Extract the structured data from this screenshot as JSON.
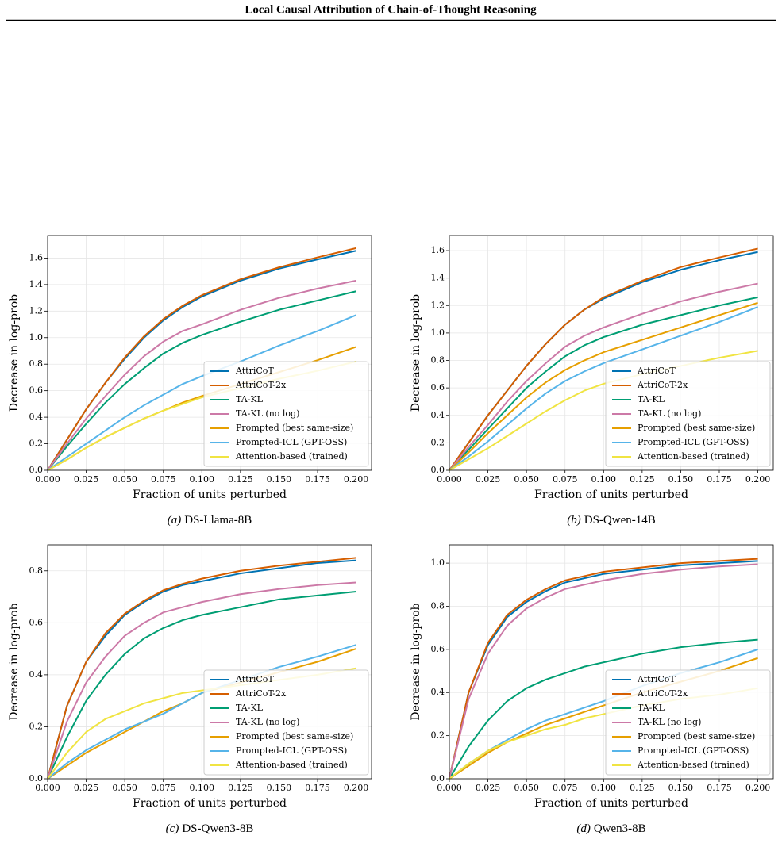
{
  "header": {
    "title": "Local Causal Attribution of Chain-of-Thought Reasoning"
  },
  "chart_data": [
    {
      "type": "line",
      "caption_label": "(a)",
      "caption": "DS-Llama-8B",
      "xlabel": "Fraction of units perturbed",
      "ylabel": "Decrease in log-prob",
      "x": [
        0,
        0.0125,
        0.025,
        0.0375,
        0.05,
        0.0625,
        0.075,
        0.0875,
        0.1,
        0.125,
        0.15,
        0.175,
        0.2
      ],
      "xlim": [
        0,
        0.21
      ],
      "ylim": [
        0,
        1.77
      ],
      "xticks": [
        {
          "value": 0,
          "label": "0.000"
        },
        0.025,
        {
          "value": 0.05,
          "label": "0.050"
        },
        0.075,
        {
          "value": 0.1,
          "label": "0.100"
        },
        0.125,
        {
          "value": 0.15,
          "label": "0.150"
        },
        0.175,
        {
          "value": 0.2,
          "label": "0.200"
        }
      ],
      "yticks": [
        {
          "value": 0,
          "label": "0.0"
        },
        0.2,
        0.4,
        0.6,
        0.8,
        {
          "value": 1,
          "label": "1.0"
        },
        1.2,
        1.4,
        1.6
      ],
      "grid": true,
      "legend": "lower right",
      "series": [
        {
          "name": "AttriCoT",
          "color": "#0072b2",
          "values": [
            0,
            0.23,
            0.46,
            0.66,
            0.84,
            1.0,
            1.13,
            1.23,
            1.31,
            1.43,
            1.52,
            1.59,
            1.655
          ]
        },
        {
          "name": "AttriCoT-2x",
          "color": "#d55e00",
          "values": [
            0,
            0.23,
            0.46,
            0.66,
            0.85,
            1.01,
            1.14,
            1.24,
            1.32,
            1.44,
            1.53,
            1.605,
            1.675
          ]
        },
        {
          "name": "TA-KL",
          "color": "#009e73",
          "values": [
            0,
            0.18,
            0.35,
            0.51,
            0.65,
            0.77,
            0.88,
            0.96,
            1.02,
            1.12,
            1.21,
            1.28,
            1.35
          ]
        },
        {
          "name": "TA-KL (no log)",
          "color": "#cc79a7",
          "values": [
            0,
            0.2,
            0.39,
            0.56,
            0.72,
            0.86,
            0.97,
            1.05,
            1.1,
            1.21,
            1.3,
            1.37,
            1.43
          ]
        },
        {
          "name": "Prompted (best same-size)",
          "color": "#e69f00",
          "values": [
            0,
            0.08,
            0.17,
            0.25,
            0.32,
            0.39,
            0.45,
            0.51,
            0.56,
            0.65,
            0.74,
            0.83,
            0.93
          ]
        },
        {
          "name": "Prompted-ICL (GPT-OSS)",
          "color": "#56b4e9",
          "values": [
            0,
            0.1,
            0.2,
            0.3,
            0.4,
            0.49,
            0.57,
            0.65,
            0.71,
            0.82,
            0.94,
            1.05,
            1.17
          ]
        },
        {
          "name": "Attention-based (trained)",
          "color": "#f0e442",
          "values": [
            0,
            0.08,
            0.17,
            0.25,
            0.32,
            0.39,
            0.45,
            0.5,
            0.55,
            0.62,
            0.69,
            0.75,
            0.82
          ]
        }
      ]
    },
    {
      "type": "line",
      "caption_label": "(b)",
      "caption": "DS-Qwen-14B",
      "xlabel": "Fraction of units perturbed",
      "ylabel": "Decrease in log-prob",
      "x": [
        0,
        0.0125,
        0.025,
        0.0375,
        0.05,
        0.0625,
        0.075,
        0.0875,
        0.1,
        0.125,
        0.15,
        0.175,
        0.2
      ],
      "xlim": [
        0,
        0.21
      ],
      "ylim": [
        0,
        1.71
      ],
      "xticks": [
        {
          "value": 0,
          "label": "0.000"
        },
        0.025,
        {
          "value": 0.05,
          "label": "0.050"
        },
        0.075,
        {
          "value": 0.1,
          "label": "0.100"
        },
        0.125,
        {
          "value": 0.15,
          "label": "0.150"
        },
        0.175,
        {
          "value": 0.2,
          "label": "0.200"
        }
      ],
      "yticks": [
        {
          "value": 0,
          "label": "0.0"
        },
        0.2,
        0.4,
        0.6,
        0.8,
        {
          "value": 1,
          "label": "1.0"
        },
        1.2,
        1.4,
        1.6
      ],
      "grid": true,
      "legend": "lower right",
      "series": [
        {
          "name": "AttriCoT",
          "color": "#0072b2",
          "values": [
            0,
            0.2,
            0.4,
            0.58,
            0.76,
            0.92,
            1.06,
            1.17,
            1.25,
            1.37,
            1.46,
            1.53,
            1.59
          ]
        },
        {
          "name": "AttriCoT-2x",
          "color": "#d55e00",
          "values": [
            0,
            0.2,
            0.4,
            0.58,
            0.76,
            0.92,
            1.06,
            1.17,
            1.26,
            1.38,
            1.48,
            1.55,
            1.615
          ]
        },
        {
          "name": "TA-KL",
          "color": "#009e73",
          "values": [
            0,
            0.15,
            0.3,
            0.45,
            0.6,
            0.72,
            0.83,
            0.91,
            0.97,
            1.06,
            1.13,
            1.2,
            1.26
          ]
        },
        {
          "name": "TA-KL (no log)",
          "color": "#cc79a7",
          "values": [
            0,
            0.17,
            0.33,
            0.5,
            0.65,
            0.78,
            0.9,
            0.98,
            1.04,
            1.14,
            1.23,
            1.3,
            1.36
          ]
        },
        {
          "name": "Prompted (best same-size)",
          "color": "#e69f00",
          "values": [
            0,
            0.13,
            0.27,
            0.4,
            0.53,
            0.64,
            0.73,
            0.8,
            0.86,
            0.95,
            1.04,
            1.13,
            1.22
          ]
        },
        {
          "name": "Prompted-ICL (GPT-OSS)",
          "color": "#56b4e9",
          "values": [
            0,
            0.1,
            0.21,
            0.33,
            0.45,
            0.56,
            0.65,
            0.72,
            0.78,
            0.88,
            0.98,
            1.08,
            1.19
          ]
        },
        {
          "name": "Attention-based (trained)",
          "color": "#f0e442",
          "values": [
            0,
            0.08,
            0.16,
            0.25,
            0.34,
            0.43,
            0.51,
            0.58,
            0.63,
            0.7,
            0.76,
            0.82,
            0.87
          ]
        }
      ]
    },
    {
      "type": "line",
      "caption_label": "(c)",
      "caption": "DS-Qwen3-8B",
      "xlabel": "Fraction of units perturbed",
      "ylabel": "Decrease in log-prob",
      "x": [
        0,
        0.0125,
        0.025,
        0.0375,
        0.05,
        0.0625,
        0.075,
        0.0875,
        0.1,
        0.125,
        0.15,
        0.175,
        0.2
      ],
      "xlim": [
        0,
        0.21
      ],
      "ylim": [
        0,
        0.9
      ],
      "xticks": [
        {
          "value": 0,
          "label": "0.000"
        },
        0.025,
        {
          "value": 0.05,
          "label": "0.050"
        },
        0.075,
        {
          "value": 0.1,
          "label": "0.100"
        },
        0.125,
        {
          "value": 0.15,
          "label": "0.150"
        },
        0.175,
        {
          "value": 0.2,
          "label": "0.200"
        }
      ],
      "yticks": [
        {
          "value": 0,
          "label": "0.0"
        },
        0.2,
        0.4,
        0.6,
        0.8
      ],
      "grid": true,
      "legend": "lower right",
      "series": [
        {
          "name": "AttriCoT",
          "color": "#0072b2",
          "values": [
            0,
            0.28,
            0.45,
            0.55,
            0.63,
            0.68,
            0.72,
            0.745,
            0.76,
            0.79,
            0.81,
            0.83,
            0.84
          ]
        },
        {
          "name": "AttriCoT-2x",
          "color": "#d55e00",
          "values": [
            0,
            0.28,
            0.45,
            0.56,
            0.635,
            0.685,
            0.725,
            0.75,
            0.77,
            0.8,
            0.82,
            0.835,
            0.85
          ]
        },
        {
          "name": "TA-KL",
          "color": "#009e73",
          "values": [
            0,
            0.16,
            0.3,
            0.4,
            0.48,
            0.54,
            0.58,
            0.61,
            0.63,
            0.66,
            0.69,
            0.705,
            0.72
          ]
        },
        {
          "name": "TA-KL (no log)",
          "color": "#cc79a7",
          "values": [
            0,
            0.22,
            0.37,
            0.47,
            0.55,
            0.6,
            0.64,
            0.66,
            0.68,
            0.71,
            0.73,
            0.745,
            0.755
          ]
        },
        {
          "name": "Prompted (best same-size)",
          "color": "#e69f00",
          "values": [
            0,
            0.05,
            0.1,
            0.14,
            0.18,
            0.22,
            0.26,
            0.29,
            0.33,
            0.37,
            0.41,
            0.45,
            0.5
          ]
        },
        {
          "name": "Prompted-ICL (GPT-OSS)",
          "color": "#56b4e9",
          "values": [
            0,
            0.06,
            0.11,
            0.15,
            0.19,
            0.22,
            0.25,
            0.29,
            0.33,
            0.38,
            0.43,
            0.47,
            0.515
          ]
        },
        {
          "name": "Attention-based (trained)",
          "color": "#f0e442",
          "values": [
            0,
            0.1,
            0.18,
            0.23,
            0.26,
            0.29,
            0.31,
            0.33,
            0.34,
            0.36,
            0.38,
            0.4,
            0.425
          ]
        }
      ]
    },
    {
      "type": "line",
      "caption_label": "(d)",
      "caption": "Qwen3-8B",
      "xlabel": "Fraction of units perturbed",
      "ylabel": "Decrease in log-prob",
      "x": [
        0,
        0.0125,
        0.025,
        0.0375,
        0.05,
        0.0625,
        0.075,
        0.0875,
        0.1,
        0.125,
        0.15,
        0.175,
        0.2
      ],
      "xlim": [
        0,
        0.21
      ],
      "ylim": [
        0,
        1.085
      ],
      "xticks": [
        {
          "value": 0,
          "label": "0.000"
        },
        0.025,
        {
          "value": 0.05,
          "label": "0.050"
        },
        0.075,
        {
          "value": 0.1,
          "label": "0.100"
        },
        0.125,
        {
          "value": 0.15,
          "label": "0.150"
        },
        0.175,
        {
          "value": 0.2,
          "label": "0.200"
        }
      ],
      "yticks": [
        {
          "value": 0,
          "label": "0.0"
        },
        0.2,
        0.4,
        0.6,
        0.8,
        {
          "value": 1,
          "label": "1.0"
        }
      ],
      "grid": true,
      "legend": "lower right",
      "series": [
        {
          "name": "AttriCoT",
          "color": "#0072b2",
          "values": [
            0,
            0.4,
            0.62,
            0.75,
            0.82,
            0.87,
            0.91,
            0.93,
            0.95,
            0.97,
            0.99,
            1.0,
            1.01
          ]
        },
        {
          "name": "AttriCoT-2x",
          "color": "#d55e00",
          "values": [
            0,
            0.4,
            0.63,
            0.76,
            0.83,
            0.88,
            0.92,
            0.94,
            0.96,
            0.98,
            1.0,
            1.01,
            1.02
          ]
        },
        {
          "name": "TA-KL",
          "color": "#009e73",
          "values": [
            0,
            0.15,
            0.27,
            0.36,
            0.42,
            0.46,
            0.49,
            0.52,
            0.54,
            0.58,
            0.61,
            0.63,
            0.645
          ]
        },
        {
          "name": "TA-KL (no log)",
          "color": "#cc79a7",
          "values": [
            0,
            0.37,
            0.58,
            0.71,
            0.79,
            0.84,
            0.88,
            0.9,
            0.92,
            0.95,
            0.97,
            0.985,
            0.995
          ]
        },
        {
          "name": "Prompted (best same-size)",
          "color": "#e69f00",
          "values": [
            0,
            0.06,
            0.12,
            0.17,
            0.21,
            0.25,
            0.28,
            0.31,
            0.34,
            0.4,
            0.45,
            0.5,
            0.56
          ]
        },
        {
          "name": "Prompted-ICL (GPT-OSS)",
          "color": "#56b4e9",
          "values": [
            0,
            0.07,
            0.13,
            0.18,
            0.23,
            0.27,
            0.3,
            0.33,
            0.36,
            0.43,
            0.49,
            0.54,
            0.6
          ]
        },
        {
          "name": "Attention-based (trained)",
          "color": "#f0e442",
          "values": [
            0,
            0.07,
            0.13,
            0.17,
            0.2,
            0.23,
            0.25,
            0.28,
            0.3,
            0.34,
            0.37,
            0.39,
            0.42
          ]
        }
      ]
    }
  ]
}
